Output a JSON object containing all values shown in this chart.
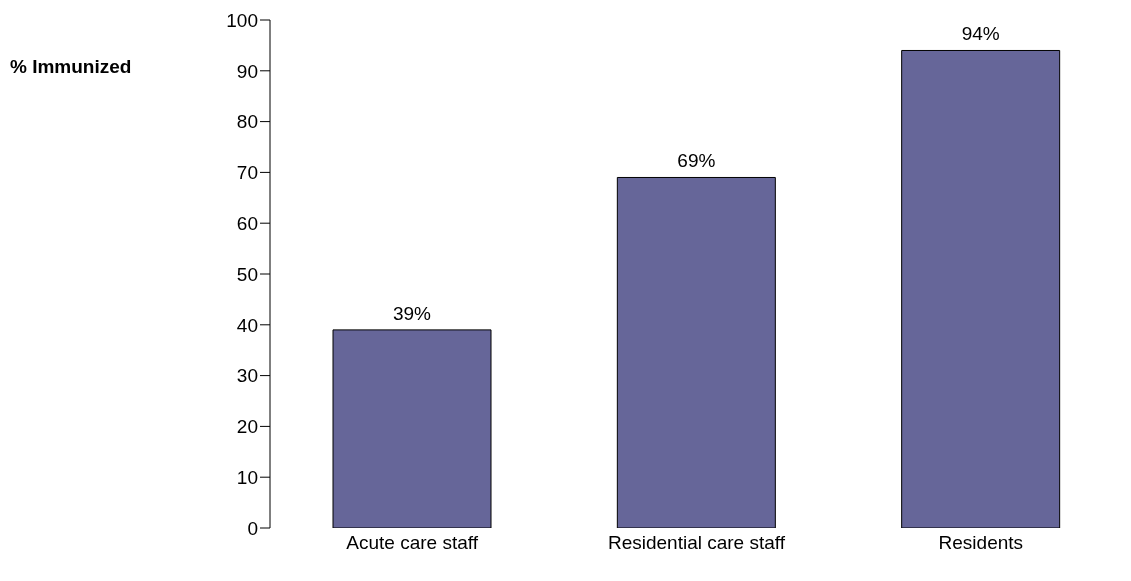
{
  "chart_data": {
    "type": "bar",
    "ylabel": "% Immunized",
    "categories": [
      "Acute care staff",
      "Residential care staff",
      "Residents"
    ],
    "values": [
      39,
      69,
      94
    ],
    "value_labels": [
      "39%",
      "69%",
      "94%"
    ],
    "color": "#666699",
    "ylim": [
      0,
      100
    ],
    "yticks": [
      0,
      10,
      20,
      30,
      40,
      50,
      60,
      70,
      80,
      90,
      100
    ],
    "grid": false
  }
}
